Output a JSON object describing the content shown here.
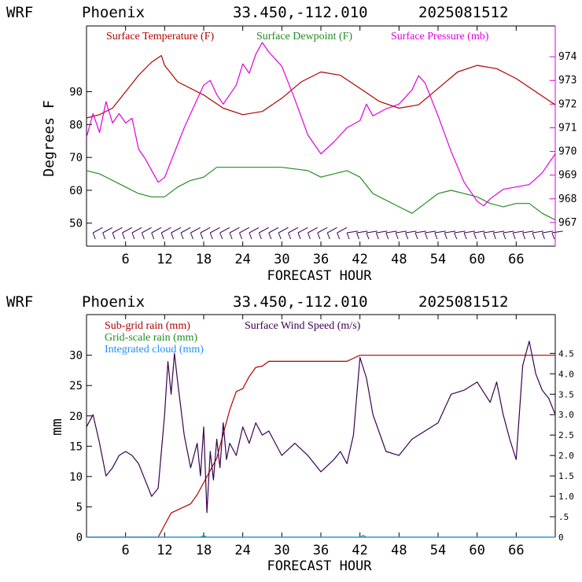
{
  "colors": {
    "temperature": "#b00000",
    "dewpoint": "#228b22",
    "pressure": "#e000e0",
    "subgrid_rain": "#b00000",
    "gridscale_rain": "#228b22",
    "cloud": "#1e90ff",
    "wind": "#3a0050",
    "barbs": "#3a0050",
    "frame": "#000000"
  },
  "chart_data": [
    {
      "type": "line",
      "header": {
        "model": "WRF",
        "station": "Phoenix",
        "coords": "33.450,-112.010",
        "init": "2025081512"
      },
      "xlabel": "FORECAST HOUR",
      "ylabel": "Degrees F",
      "xlim": [
        0,
        72
      ],
      "ylim": [
        43,
        110
      ],
      "xticks": [
        "6",
        "12",
        "18",
        "24",
        "30",
        "36",
        "42",
        "48",
        "54",
        "60",
        "66"
      ],
      "yticks": [
        "50",
        "60",
        "70",
        "80",
        "90"
      ],
      "y2ticks": [
        "967",
        "968",
        "969",
        "970",
        "971",
        "972",
        "973",
        "974"
      ],
      "y2lim": [
        966.0,
        975.3
      ],
      "legend": [
        "Surface Temperature (F)",
        "Surface Dewpoint (F)",
        "Surface Pressure (mb)"
      ],
      "series": [
        {
          "name": "Surface Temperature (F)",
          "axis": "left",
          "x": [
            0,
            2,
            4,
            6,
            8,
            10,
            11.5,
            12,
            14,
            18,
            21,
            24,
            27,
            30,
            33,
            36,
            39,
            42,
            45,
            48,
            51,
            54,
            57,
            60,
            63,
            66,
            69,
            72
          ],
          "y": [
            82,
            83,
            85,
            90,
            95,
            99,
            101,
            98,
            93,
            89,
            85,
            83,
            84,
            88,
            93,
            96,
            95,
            91,
            87,
            85,
            86,
            91,
            96,
            98,
            97,
            94,
            90,
            86
          ]
        },
        {
          "name": "Surface Dewpoint (F)",
          "axis": "left",
          "x": [
            0,
            2,
            4,
            6,
            8,
            10,
            12,
            14,
            16,
            18,
            20,
            24,
            30,
            34,
            36,
            38,
            40,
            42,
            44,
            48,
            50,
            52,
            54,
            56,
            58,
            60,
            62,
            64,
            66,
            68,
            70,
            72
          ],
          "y": [
            66,
            65,
            63,
            61,
            59,
            58,
            58,
            61,
            63,
            64,
            67,
            67,
            67,
            66,
            64,
            65,
            66,
            64,
            59,
            55,
            53,
            56,
            59,
            60,
            59,
            58,
            56,
            55,
            56,
            56,
            53,
            51
          ]
        },
        {
          "name": "Surface Pressure (mb)",
          "axis": "right",
          "x": [
            0,
            1,
            2,
            3,
            4,
            5,
            6,
            7,
            8,
            9,
            10,
            11,
            12,
            13,
            14,
            15,
            16,
            17,
            18,
            19,
            20,
            21,
            22,
            23,
            24,
            25,
            26,
            27,
            28,
            29,
            30,
            32,
            34,
            36,
            38,
            40,
            42,
            43,
            44,
            46,
            48,
            50,
            51,
            52,
            54,
            56,
            58,
            60,
            61,
            62,
            64,
            66,
            68,
            70,
            72
          ],
          "y": [
            970.6,
            971.6,
            970.8,
            972.1,
            971.2,
            971.6,
            971.2,
            971.4,
            970.1,
            969.7,
            969.2,
            968.7,
            968.9,
            969.6,
            970.3,
            971.0,
            971.6,
            972.2,
            972.8,
            973.0,
            972.4,
            972.0,
            972.4,
            972.8,
            973.7,
            973.3,
            974.1,
            974.6,
            974.2,
            973.9,
            973.6,
            972.2,
            970.7,
            969.9,
            970.4,
            971.0,
            971.3,
            972.0,
            971.5,
            971.8,
            972.0,
            972.6,
            973.2,
            972.9,
            971.5,
            970.0,
            968.7,
            967.9,
            967.7,
            968.0,
            968.4,
            968.5,
            968.6,
            969.1,
            969.9
          ]
        }
      ]
    },
    {
      "type": "line",
      "header": {
        "model": "WRF",
        "station": "Phoenix",
        "coords": "33.450,-112.010",
        "init": "2025081512"
      },
      "xlabel": "FORECAST HOUR",
      "ylabel": "mm",
      "xlim": [
        0,
        72
      ],
      "ylim": [
        0,
        36.7
      ],
      "xticks": [
        "6",
        "12",
        "18",
        "24",
        "30",
        "36",
        "42",
        "48",
        "54",
        "60",
        "66"
      ],
      "yticks": [
        "0",
        "5",
        "10",
        "15",
        "20",
        "25",
        "30"
      ],
      "y2ticks": [
        "0",
        "0.5",
        "1.0",
        "1.5",
        "2.0",
        "2.5",
        "3.0",
        "3.5",
        "4.0",
        "4.5"
      ],
      "y2_display": [
        "0",
        ".5",
        "1.0",
        "1.5",
        "2.0",
        "2.5",
        "3.0",
        "3.5",
        "4.0",
        "4.5"
      ],
      "y2lim": [
        0,
        5.45
      ],
      "legend": [
        "Sub-grid rain (mm)",
        "Surface Wind Speed (m/s)",
        "Grid-scale rain (mm)",
        "Integrated cloud (mm)"
      ],
      "series": [
        {
          "name": "Sub-grid rain (mm)",
          "axis": "left",
          "x": [
            0,
            11,
            12,
            13,
            14,
            15,
            16,
            17,
            18,
            19,
            20,
            21,
            22,
            23,
            24,
            25,
            26,
            27,
            28,
            30,
            35,
            40,
            41,
            42,
            45,
            50,
            60,
            72
          ],
          "y": [
            0,
            0,
            2,
            4,
            4.5,
            5,
            5.5,
            7,
            9,
            11,
            13,
            17,
            21,
            24,
            24.5,
            26.5,
            28,
            28.2,
            29,
            29,
            29,
            29,
            29.5,
            30,
            30,
            30,
            30,
            30
          ]
        },
        {
          "name": "Grid-scale rain (mm)",
          "axis": "left",
          "x": [
            0,
            72
          ],
          "y": [
            0,
            0
          ]
        },
        {
          "name": "Integrated cloud (mm)",
          "axis": "left",
          "x": [
            0,
            17.5,
            18,
            18.5,
            19,
            42,
            42.5,
            43,
            72
          ],
          "y": [
            0,
            0,
            0.3,
            0,
            0,
            0,
            0.3,
            0,
            0
          ]
        },
        {
          "name": "Surface Wind Speed (m/s)",
          "axis": "right",
          "x": [
            0,
            1,
            2,
            3,
            4,
            5,
            6,
            7,
            8,
            9,
            10,
            11,
            12,
            12.5,
            13,
            13.5,
            14,
            15,
            16,
            17,
            17.5,
            18,
            18.5,
            19,
            19.5,
            20,
            20.5,
            21,
            21.5,
            22,
            23,
            24,
            25,
            26,
            27,
            28,
            30,
            32,
            34,
            36,
            38,
            39,
            40,
            41,
            42,
            43,
            44,
            46,
            48,
            50,
            52,
            54,
            56,
            58,
            60,
            62,
            63,
            64,
            65,
            66,
            67,
            68,
            69,
            70,
            71,
            72
          ],
          "y": [
            2.7,
            3.0,
            2.3,
            1.5,
            1.7,
            2.0,
            2.1,
            2.0,
            1.8,
            1.4,
            1.0,
            1.2,
            3.0,
            4.3,
            3.5,
            4.5,
            3.8,
            2.5,
            1.7,
            2.3,
            1.5,
            2.7,
            0.6,
            2.1,
            1.4,
            2.4,
            1.7,
            2.8,
            1.9,
            2.3,
            2.0,
            2.7,
            2.3,
            2.8,
            2.5,
            2.6,
            2.0,
            2.3,
            2.0,
            1.6,
            1.9,
            2.1,
            1.8,
            2.5,
            4.4,
            3.9,
            3.0,
            2.1,
            2.0,
            2.4,
            2.6,
            2.8,
            3.5,
            3.6,
            3.8,
            3.3,
            3.8,
            3.0,
            2.4,
            1.9,
            4.2,
            4.8,
            4.0,
            3.6,
            3.4,
            3.0
          ]
        }
      ]
    }
  ]
}
